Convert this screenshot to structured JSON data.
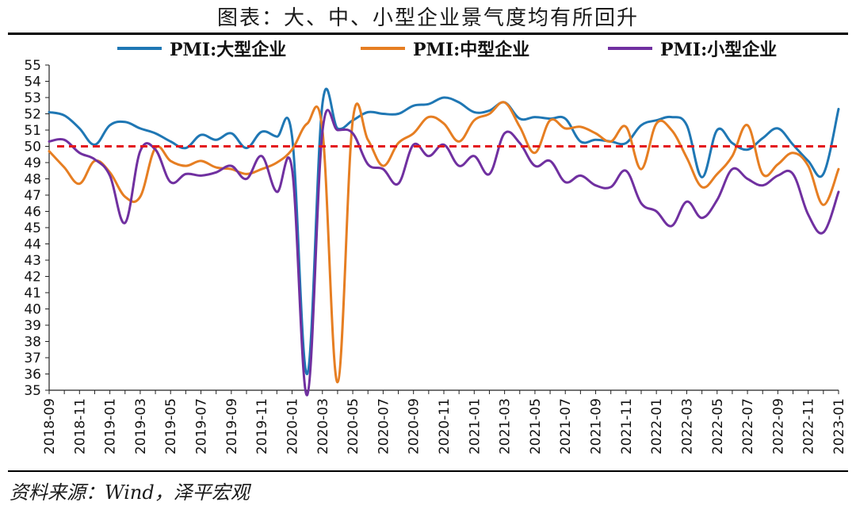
{
  "title": "图表：大、中、小型企业景气度均有所回升",
  "source": "资料来源：Wind，泽平宏观",
  "chart_data": {
    "type": "line",
    "ylim": [
      35,
      55
    ],
    "yticks": [
      35,
      36,
      37,
      38,
      39,
      40,
      41,
      42,
      43,
      44,
      45,
      46,
      47,
      48,
      49,
      50,
      51,
      52,
      53,
      54,
      55
    ],
    "reference_line": {
      "value": 50,
      "color": "#e3161d",
      "style": "dashed"
    },
    "x": [
      "2018-09",
      "2018-10",
      "2018-11",
      "2018-12",
      "2019-01",
      "2019-02",
      "2019-03",
      "2019-04",
      "2019-05",
      "2019-06",
      "2019-07",
      "2019-08",
      "2019-09",
      "2019-10",
      "2019-11",
      "2019-12",
      "2020-01",
      "2020-02",
      "2020-03",
      "2020-04",
      "2020-05",
      "2020-06",
      "2020-07",
      "2020-08",
      "2020-09",
      "2020-10",
      "2020-11",
      "2020-12",
      "2021-01",
      "2021-02",
      "2021-03",
      "2021-04",
      "2021-05",
      "2021-06",
      "2021-07",
      "2021-08",
      "2021-09",
      "2021-10",
      "2021-11",
      "2021-12",
      "2022-01",
      "2022-02",
      "2022-03",
      "2022-04",
      "2022-05",
      "2022-06",
      "2022-07",
      "2022-08",
      "2022-09",
      "2022-10",
      "2022-11",
      "2022-12",
      "2023-01"
    ],
    "xtick_labels": [
      "2018-09",
      "2018-11",
      "2019-01",
      "2019-03",
      "2019-05",
      "2019-07",
      "2019-09",
      "2019-11",
      "2020-01",
      "2020-03",
      "2020-05",
      "2020-07",
      "2020-09",
      "2020-11",
      "2021-01",
      "2021-03",
      "2021-05",
      "2021-07",
      "2021-09",
      "2021-11",
      "2022-01",
      "2022-03",
      "2022-05",
      "2022-07",
      "2022-09",
      "2022-11",
      "2023-01"
    ],
    "series": [
      {
        "name": "PMI:大型企业",
        "color": "#1f77b4",
        "values": [
          52.1,
          51.9,
          51.1,
          50.1,
          51.3,
          51.5,
          51.1,
          50.8,
          50.3,
          49.9,
          50.7,
          50.4,
          50.8,
          49.9,
          50.9,
          50.6,
          50.6,
          36.0,
          52.6,
          51.1,
          51.6,
          52.1,
          52.0,
          52.0,
          52.5,
          52.6,
          53.0,
          52.7,
          52.1,
          52.2,
          52.7,
          51.7,
          51.8,
          51.7,
          51.7,
          50.3,
          50.4,
          50.3,
          50.2,
          51.3,
          51.6,
          51.8,
          51.3,
          48.1,
          51.0,
          50.2,
          49.8,
          50.5,
          51.1,
          50.1,
          49.1,
          48.3,
          52.3
        ]
      },
      {
        "name": "PMI:中型企业",
        "color": "#e67e22",
        "values": [
          49.7,
          48.7,
          47.7,
          49.1,
          48.4,
          46.9,
          46.9,
          49.9,
          49.1,
          48.8,
          49.1,
          48.7,
          48.6,
          48.3,
          48.6,
          49.0,
          49.8,
          51.4,
          51.0,
          35.5,
          51.6,
          50.4,
          48.8,
          50.2,
          50.8,
          51.8,
          51.4,
          50.3,
          51.6,
          52.0,
          52.7,
          51.2,
          49.6,
          51.6,
          51.1,
          51.2,
          50.8,
          50.3,
          51.2,
          48.6,
          51.4,
          51.0,
          49.3,
          47.5,
          48.3,
          49.4,
          51.3,
          48.3,
          48.9,
          49.6,
          48.8,
          46.4,
          48.6
        ]
      },
      {
        "name": "PMI:小型企业",
        "color": "#7030a0",
        "values": [
          50.3,
          50.4,
          49.6,
          49.2,
          48.2,
          45.3,
          49.7,
          49.8,
          47.8,
          48.3,
          48.2,
          48.4,
          48.8,
          48.0,
          49.4,
          47.2,
          48.6,
          34.1,
          50.9,
          51.0,
          50.8,
          48.9,
          48.6,
          47.7,
          50.1,
          49.4,
          50.1,
          48.8,
          49.4,
          48.3,
          50.8,
          50.2,
          48.8,
          49.1,
          47.8,
          48.2,
          47.6,
          47.5,
          48.5,
          46.5,
          46.0,
          45.1,
          46.6,
          45.6,
          46.7,
          48.6,
          48.0,
          47.6,
          48.2,
          48.3,
          45.8,
          44.7,
          47.2
        ]
      }
    ]
  }
}
